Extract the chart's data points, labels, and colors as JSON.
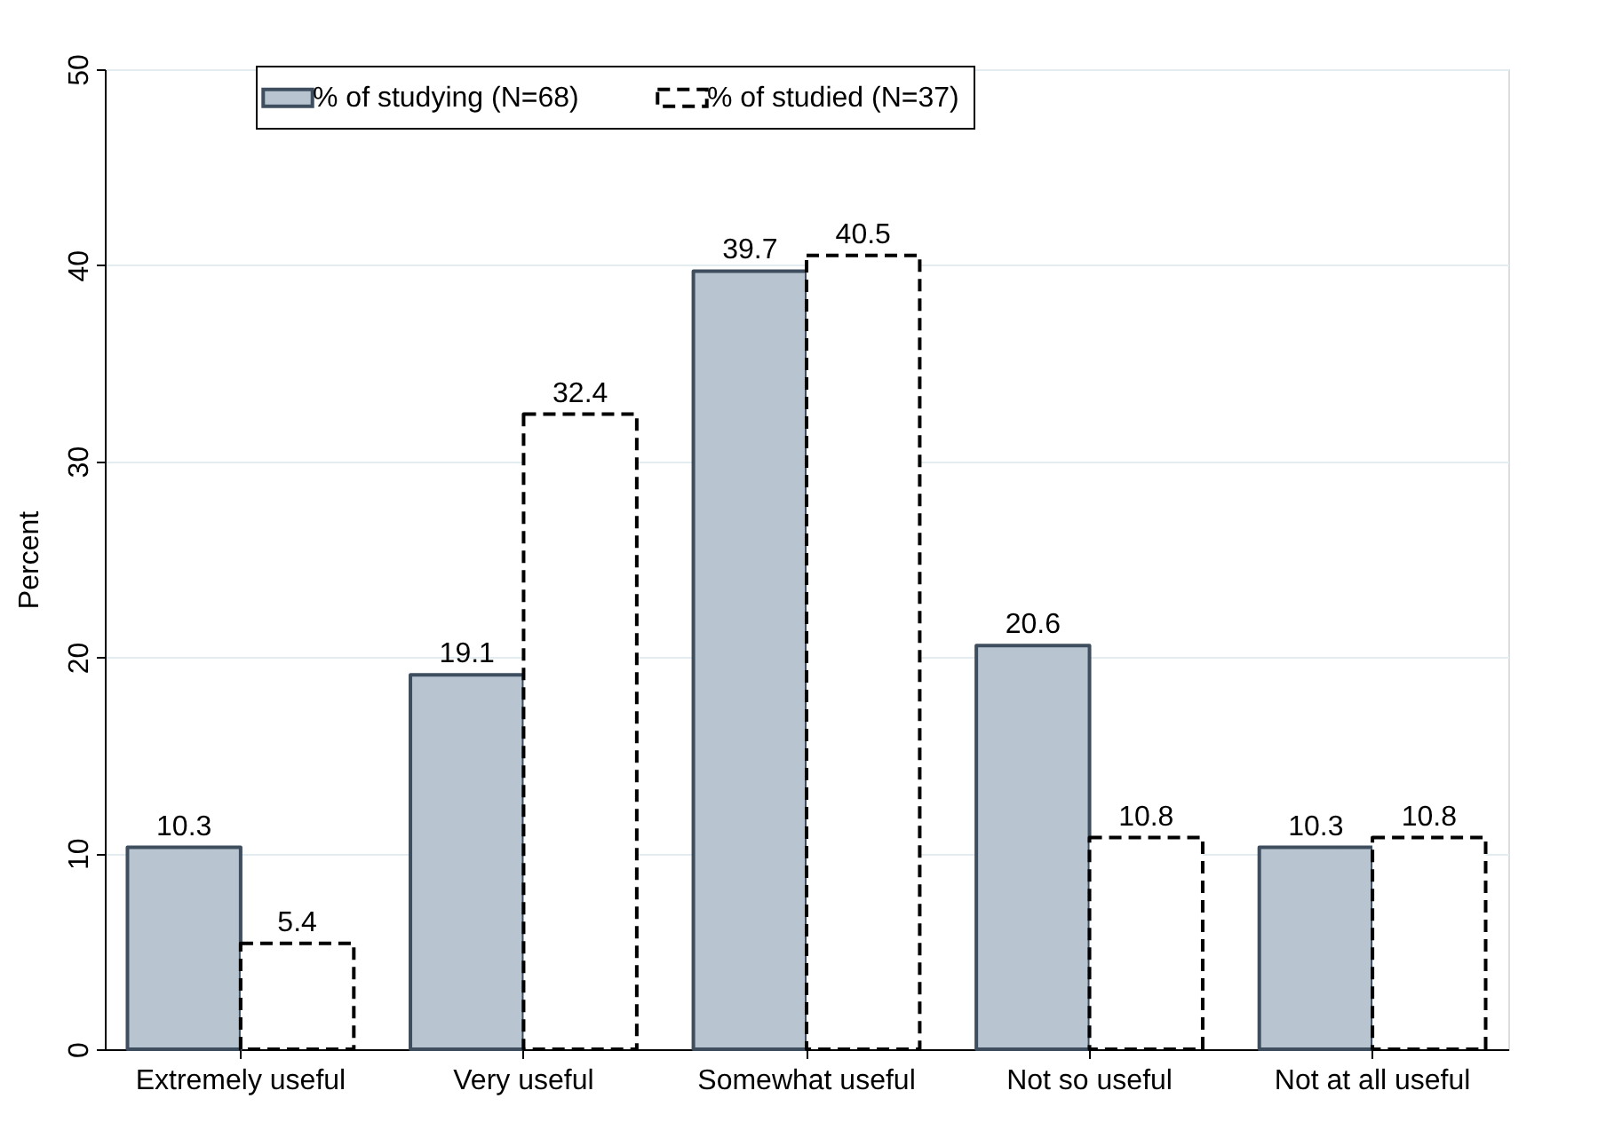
{
  "chart_data": {
    "type": "bar",
    "ylabel": "Percent",
    "categories": [
      "Extremely useful",
      "Very useful",
      "Somewhat useful",
      "Not so useful",
      "Not at all useful"
    ],
    "series": [
      {
        "name": "% of studying (N=68)",
        "color": "#b8c4d0",
        "line_style": "solid",
        "values": [
          10.3,
          19.1,
          39.7,
          20.6,
          10.3
        ]
      },
      {
        "name": "% of studied (N=37)",
        "color": "#ffffff",
        "line_style": "dashed",
        "values": [
          5.4,
          32.4,
          40.5,
          10.8,
          10.8
        ]
      }
    ],
    "ylim": [
      0,
      50
    ],
    "yticks": [
      0,
      10,
      20,
      30,
      40,
      50
    ],
    "grid": "y",
    "legend": "top",
    "data_labels": true
  }
}
